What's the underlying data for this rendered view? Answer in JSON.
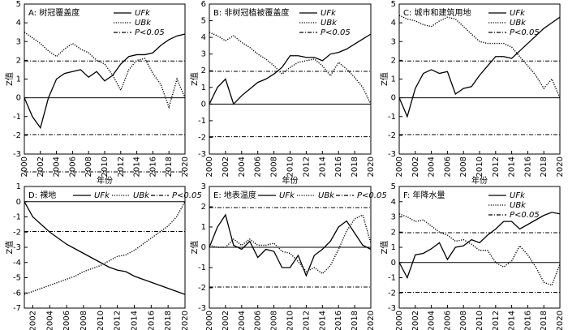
{
  "chart_data": [
    {
      "type": "line",
      "title": "A: 树冠覆盖度",
      "xlabel": "年份",
      "ylabel": "Z值",
      "legend": "top-right-vertical",
      "x": [
        2000,
        2001,
        2002,
        2003,
        2004,
        2005,
        2006,
        2007,
        2008,
        2009,
        2010,
        2011,
        2012,
        2013,
        2014,
        2015,
        2016,
        2017,
        2018,
        2019,
        2020
      ],
      "xlim": [
        2000,
        2020
      ],
      "xticks": [
        2000,
        2002,
        2004,
        2006,
        2008,
        2010,
        2012,
        2014,
        2016,
        2018,
        2020
      ],
      "ylim": [
        -3,
        5
      ],
      "yticks": [
        -3,
        -2,
        -1,
        0,
        1,
        2,
        3,
        4,
        5
      ],
      "series": [
        {
          "name": "UFk",
          "color": "#000",
          "style": "solid",
          "values": [
            0,
            -1.0,
            -1.6,
            0,
            1.0,
            1.3,
            1.4,
            1.5,
            1.1,
            1.4,
            0.9,
            1.2,
            1.8,
            2.2,
            2.3,
            2.3,
            2.4,
            2.8,
            3.1,
            3.3,
            3.4
          ]
        },
        {
          "name": "UBk",
          "color": "#000",
          "style": "dotted",
          "values": [
            3.5,
            3.2,
            2.9,
            2.5,
            2.2,
            2.6,
            2.9,
            2.6,
            2.4,
            2.0,
            1.8,
            1.2,
            0.4,
            1.5,
            2.0,
            2.1,
            1.3,
            0.7,
            -0.5,
            1.0,
            0
          ]
        }
      ],
      "threshold": {
        "name": "P<0.05",
        "values": [
          1.96,
          -1.96
        ]
      }
    },
    {
      "type": "line",
      "title": "B: 非树冠植被覆盖度",
      "xlabel": "年份",
      "ylabel": "Z值",
      "legend": "top-right-vertical",
      "x": [
        2000,
        2001,
        2002,
        2003,
        2004,
        2005,
        2006,
        2007,
        2008,
        2009,
        2010,
        2011,
        2012,
        2013,
        2014,
        2015,
        2016,
        2017,
        2018,
        2019,
        2020
      ],
      "xlim": [
        2000,
        2020
      ],
      "xticks": [
        2000,
        2002,
        2004,
        2006,
        2008,
        2010,
        2012,
        2014,
        2016,
        2018,
        2020
      ],
      "ylim": [
        -3,
        6
      ],
      "yticks": [
        -3,
        -2,
        -1,
        0,
        1,
        2,
        3,
        4,
        5,
        6
      ],
      "series": [
        {
          "name": "UFk",
          "color": "#000",
          "style": "solid",
          "values": [
            0,
            1.0,
            1.5,
            0,
            0.5,
            0.9,
            1.3,
            1.5,
            1.8,
            2.2,
            2.9,
            2.9,
            2.8,
            2.8,
            2.6,
            3.0,
            3.1,
            3.3,
            3.6,
            3.9,
            4.2
          ]
        },
        {
          "name": "UBk",
          "color": "#000",
          "style": "dotted",
          "values": [
            4.3,
            4.1,
            3.8,
            4.1,
            3.7,
            3.4,
            3.0,
            2.7,
            2.3,
            1.8,
            2.2,
            2.5,
            2.6,
            2.7,
            2.3,
            1.7,
            2.5,
            2.1,
            1.6,
            1.0,
            0
          ]
        }
      ],
      "threshold": {
        "name": "P<0.05",
        "values": [
          1.96,
          -1.96
        ]
      }
    },
    {
      "type": "line",
      "title": "C: 城市和建筑用地",
      "xlabel": "年份",
      "ylabel": "Z值",
      "legend": "top-right-vertical",
      "x": [
        2000,
        2001,
        2002,
        2003,
        2004,
        2005,
        2006,
        2007,
        2008,
        2009,
        2010,
        2011,
        2012,
        2013,
        2014,
        2015,
        2016,
        2017,
        2018,
        2019,
        2020
      ],
      "xlim": [
        2000,
        2020
      ],
      "xticks": [
        2000,
        2002,
        2004,
        2006,
        2008,
        2010,
        2012,
        2014,
        2016,
        2018,
        2020
      ],
      "ylim": [
        -3,
        5
      ],
      "yticks": [
        -3,
        -2,
        -1,
        0,
        1,
        2,
        3,
        4,
        5
      ],
      "series": [
        {
          "name": "UFk",
          "color": "#000",
          "style": "solid",
          "values": [
            0,
            -1.0,
            0.5,
            1.3,
            1.5,
            1.3,
            1.4,
            0.2,
            0.5,
            0.6,
            1.2,
            1.7,
            2.2,
            2.2,
            2.1,
            2.5,
            2.9,
            3.3,
            3.7,
            4.0,
            4.3
          ]
        },
        {
          "name": "UBk",
          "color": "#000",
          "style": "dotted",
          "values": [
            4.4,
            4.2,
            4.1,
            3.9,
            3.8,
            4.1,
            4.3,
            4.2,
            3.8,
            3.4,
            3.0,
            2.9,
            2.9,
            2.9,
            2.7,
            2.2,
            1.7,
            1.2,
            0.5,
            1.0,
            0
          ]
        }
      ],
      "threshold": {
        "name": "P<0.05",
        "values": [
          1.96,
          -1.96
        ]
      }
    },
    {
      "type": "line",
      "title": "D: 裸地",
      "xlabel": "年份",
      "ylabel": "Z值",
      "legend": "top-horizontal",
      "x": [
        2001,
        2002,
        2003,
        2004,
        2005,
        2006,
        2007,
        2008,
        2009,
        2010,
        2011,
        2012,
        2013,
        2014,
        2015,
        2016,
        2017,
        2018,
        2019,
        2020
      ],
      "xlim": [
        2001,
        2020
      ],
      "xticks": [
        2002,
        2004,
        2006,
        2008,
        2010,
        2012,
        2014,
        2016,
        2018,
        2020
      ],
      "ylim": [
        -7,
        1
      ],
      "yticks": [
        -7,
        -6,
        -5,
        -4,
        -3,
        -2,
        -1,
        0,
        1
      ],
      "series": [
        {
          "name": "UFk",
          "color": "#000",
          "style": "solid",
          "values": [
            0,
            -1.0,
            -1.5,
            -2.0,
            -2.4,
            -2.8,
            -3.1,
            -3.4,
            -3.7,
            -4.0,
            -4.3,
            -4.5,
            -4.6,
            -4.9,
            -5.1,
            -5.3,
            -5.5,
            -5.7,
            -5.9,
            -6.1
          ]
        },
        {
          "name": "UBk",
          "color": "#000",
          "style": "dotted",
          "values": [
            -6.1,
            -5.9,
            -5.7,
            -5.5,
            -5.3,
            -5.1,
            -4.9,
            -4.6,
            -4.4,
            -4.2,
            -3.9,
            -3.6,
            -3.5,
            -3.2,
            -2.8,
            -2.4,
            -2.0,
            -1.6,
            -1.0,
            0
          ]
        }
      ],
      "threshold": {
        "name": "P<0.05",
        "values": [
          1.96,
          -1.96
        ]
      }
    },
    {
      "type": "line",
      "title": "E: 地表温度",
      "xlabel": "年份",
      "ylabel": "Z值",
      "legend": "top-horizontal",
      "x": [
        2000,
        2001,
        2002,
        2003,
        2004,
        2005,
        2006,
        2007,
        2008,
        2009,
        2010,
        2011,
        2012,
        2013,
        2014,
        2015,
        2016,
        2017,
        2018,
        2019,
        2020
      ],
      "xlim": [
        2000,
        2020
      ],
      "xticks": [
        2000,
        2002,
        2004,
        2006,
        2008,
        2010,
        2012,
        2014,
        2016,
        2018,
        2020
      ],
      "ylim": [
        -3,
        3
      ],
      "yticks": [
        -3,
        -2,
        -1,
        0,
        1,
        2,
        3
      ],
      "series": [
        {
          "name": "UFk",
          "color": "#000",
          "style": "solid",
          "values": [
            0,
            1.0,
            1.6,
            0.1,
            -0.1,
            0.3,
            -0.5,
            -0.1,
            -0.2,
            -1.0,
            -1.0,
            -0.4,
            -1.4,
            -0.4,
            -0.1,
            0.3,
            1.0,
            1.3,
            0.7,
            0.1,
            -0.1
          ]
        },
        {
          "name": "UBk",
          "color": "#000",
          "style": "dotted",
          "values": [
            0.1,
            0,
            0,
            0.4,
            0.1,
            0.4,
            0.1,
            0.1,
            0.2,
            -0.2,
            -0.3,
            -0.7,
            -1.2,
            -1.0,
            -1.3,
            -0.9,
            -0.1,
            0.8,
            1.4,
            1.6,
            0.2
          ]
        }
      ],
      "threshold": {
        "name": "P<0.05",
        "values": [
          1.96,
          -1.96
        ]
      }
    },
    {
      "type": "line",
      "title": "F: 年降水量",
      "xlabel": "年份",
      "ylabel": "Z值",
      "legend": "top-right-vertical",
      "x": [
        2000,
        2001,
        2002,
        2003,
        2004,
        2005,
        2006,
        2007,
        2008,
        2009,
        2010,
        2011,
        2012,
        2013,
        2014,
        2015,
        2016,
        2017,
        2018,
        2019,
        2020
      ],
      "xlim": [
        2000,
        2020
      ],
      "xticks": [
        2000,
        2002,
        2004,
        2006,
        2008,
        2010,
        2012,
        2014,
        2016,
        2018,
        2020
      ],
      "ylim": [
        -3,
        5
      ],
      "yticks": [
        -3,
        -2,
        -1,
        0,
        1,
        2,
        3,
        4,
        5
      ],
      "series": [
        {
          "name": "UFk",
          "color": "#000",
          "style": "solid",
          "values": [
            0,
            -1.0,
            0.5,
            0.6,
            0.9,
            1.3,
            0.2,
            1.0,
            1.1,
            1.5,
            1.3,
            1.8,
            2.2,
            2.7,
            2.7,
            2.2,
            2.5,
            2.8,
            3.1,
            3.3,
            3.2
          ]
        },
        {
          "name": "UBk",
          "color": "#000",
          "style": "dotted",
          "values": [
            3.2,
            3.0,
            2.7,
            2.8,
            2.4,
            2.0,
            1.8,
            1.4,
            1.5,
            1.2,
            0.8,
            0.8,
            0,
            -0.3,
            0.1,
            1.1,
            0.5,
            -0.3,
            -1.3,
            -1.5,
            -0.1
          ]
        }
      ],
      "threshold": {
        "name": "P<0.05",
        "values": [
          1.96,
          -1.96
        ]
      }
    }
  ]
}
